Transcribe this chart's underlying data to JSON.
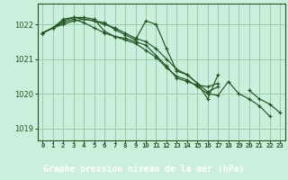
{
  "bg_color": "#cceedd",
  "plot_bg_color": "#cceedd",
  "bottom_bar_color": "#336633",
  "grid_color": "#99ccaa",
  "line_color": "#225522",
  "marker_color": "#225522",
  "xlabel": "Graphe pression niveau de la mer (hPa)",
  "xlabel_fontsize": 7.0,
  "ylabel_ticks": [
    1019,
    1020,
    1021,
    1022
  ],
  "xlim": [
    -0.5,
    23.5
  ],
  "ylim": [
    1018.65,
    1022.6
  ],
  "series": [
    [
      1021.75,
      1021.9,
      1022.0,
      1022.1,
      1022.15,
      1022.1,
      1022.05,
      1021.85,
      1021.7,
      1021.55,
      1022.1,
      1022.0,
      1021.3,
      1020.65,
      1020.55,
      1020.3,
      1020.05,
      1020.2,
      null,
      null,
      1020.1,
      1019.85,
      1019.7,
      1019.45
    ],
    [
      1021.75,
      1021.9,
      1022.15,
      1022.2,
      1022.15,
      1022.1,
      1022.0,
      1021.9,
      1021.75,
      1021.6,
      1021.5,
      1021.3,
      1021.0,
      1020.7,
      1020.55,
      1020.3,
      1019.85,
      1020.55,
      null,
      null,
      null,
      null,
      null,
      null
    ],
    [
      1021.75,
      1021.9,
      1022.1,
      1022.2,
      1022.2,
      1022.15,
      1021.8,
      1021.65,
      1021.6,
      1021.5,
      1021.4,
      1021.1,
      1020.8,
      1020.45,
      1020.35,
      1020.25,
      1020.2,
      1020.3,
      null,
      null,
      null,
      null,
      null,
      null
    ],
    [
      1021.75,
      1021.9,
      1022.05,
      1022.15,
      1022.05,
      1021.9,
      1021.75,
      1021.65,
      1021.55,
      1021.45,
      1021.25,
      1021.05,
      1020.75,
      1020.5,
      1020.4,
      1020.2,
      1020.0,
      1019.95,
      1020.35,
      1020.0,
      1019.85,
      1019.65,
      1019.35,
      null
    ]
  ],
  "xtick_labels": [
    "0",
    "1",
    "2",
    "3",
    "4",
    "5",
    "6",
    "7",
    "8",
    "9",
    "10",
    "11",
    "12",
    "13",
    "14",
    "15",
    "16",
    "17",
    "18",
    "19",
    "20",
    "21",
    "22",
    "23"
  ]
}
